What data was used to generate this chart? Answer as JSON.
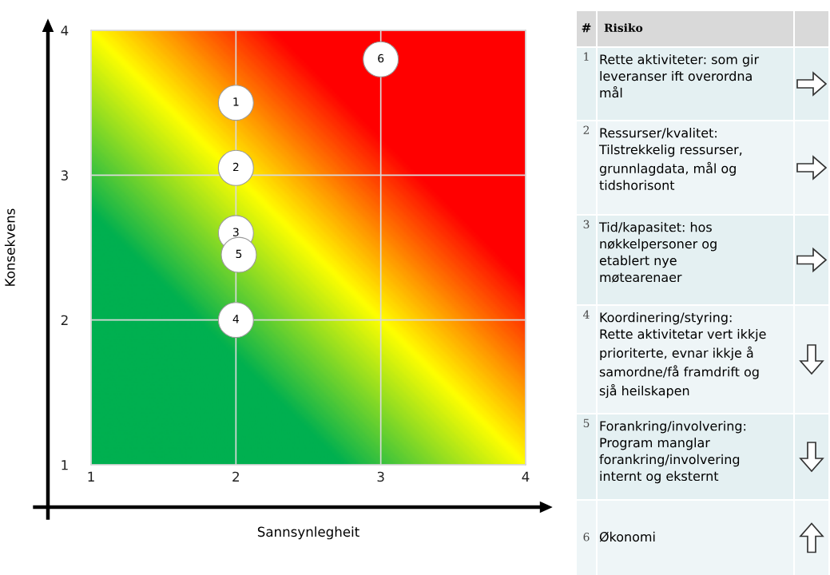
{
  "chart_data": [
    {
      "type": "scatter",
      "xlabel": "Sannsynlegheit",
      "ylabel": "Konsekvens",
      "xlim": [
        1,
        4
      ],
      "ylim": [
        1,
        4
      ],
      "xticks": [
        1,
        2,
        3,
        4
      ],
      "yticks": [
        1,
        2,
        3,
        4
      ],
      "grid": true,
      "marker": "circle",
      "series": [
        {
          "color": "#ffffff",
          "x": [
            2.0,
            2.0,
            2.0,
            2.0,
            2.02,
            3.0
          ],
          "values": [
            3.5,
            3.05,
            2.6,
            2.0,
            2.45,
            3.8
          ]
        }
      ],
      "annotations": [
        {
          "text": "1",
          "x": 2.0,
          "y": 3.5
        },
        {
          "text": "2",
          "x": 2.0,
          "y": 3.05
        },
        {
          "text": "3",
          "x": 2.0,
          "y": 2.6
        },
        {
          "text": "4",
          "x": 2.0,
          "y": 2.0
        },
        {
          "text": "5",
          "x": 2.02,
          "y": 2.45
        },
        {
          "text": "6",
          "x": 3.0,
          "y": 3.8
        }
      ]
    },
    {
      "type": "other",
      "annotations": [
        "#",
        "Risiko",
        "1",
        "Rette aktiviteter: som gir\nleveranser ift overordna\nmål",
        "2",
        "Ressurser/kvalitet:\nTilstrekkelig ressurser,\ngrunnlagdata, mål og\ntidshorisont",
        "3",
        "Tid/kapasitet: hos\nnøkkelpersoner og\netablert nye\nmøtearenaer",
        "4",
        "Koordinering/styring:\nRette aktivitetar vert ikkje\nprioriterte, evnar ikkje å\nsamordne/få framdrift og\nsjå heilskapen",
        "5",
        "Forankring/involvering:\nProgram manglar\nforankring/involvering\ninternt og eksternt",
        "6",
        "Økonomi"
      ]
    }
  ]
}
